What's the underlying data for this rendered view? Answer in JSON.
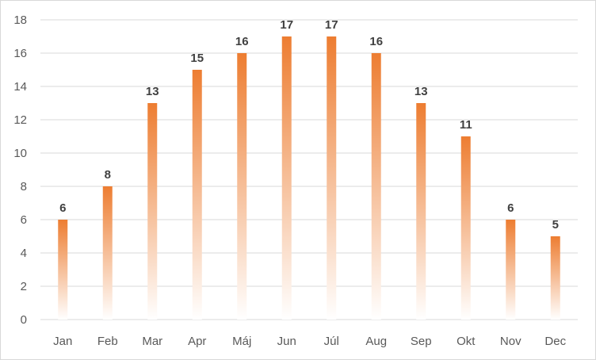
{
  "chart_data": {
    "type": "bar",
    "title": "",
    "xlabel": "",
    "ylabel": "",
    "categories": [
      "Jan",
      "Feb",
      "Mar",
      "Apr",
      "Máj",
      "Jun",
      "Júl",
      "Aug",
      "Sep",
      "Okt",
      "Nov",
      "Dec"
    ],
    "values": [
      6,
      8,
      13,
      15,
      16,
      17,
      17,
      16,
      13,
      11,
      6,
      5
    ],
    "ylim": [
      0,
      18
    ],
    "yticks": [
      0,
      2,
      4,
      6,
      8,
      10,
      12,
      14,
      16,
      18
    ],
    "grid": true,
    "legend": "none",
    "data_labels": true,
    "colors": {
      "bar_top": "#ed7d31",
      "bar_bottom": "#ffffff",
      "grid": "#d9d9d9",
      "tick_text": "#595959",
      "label_text": "#404040"
    }
  }
}
